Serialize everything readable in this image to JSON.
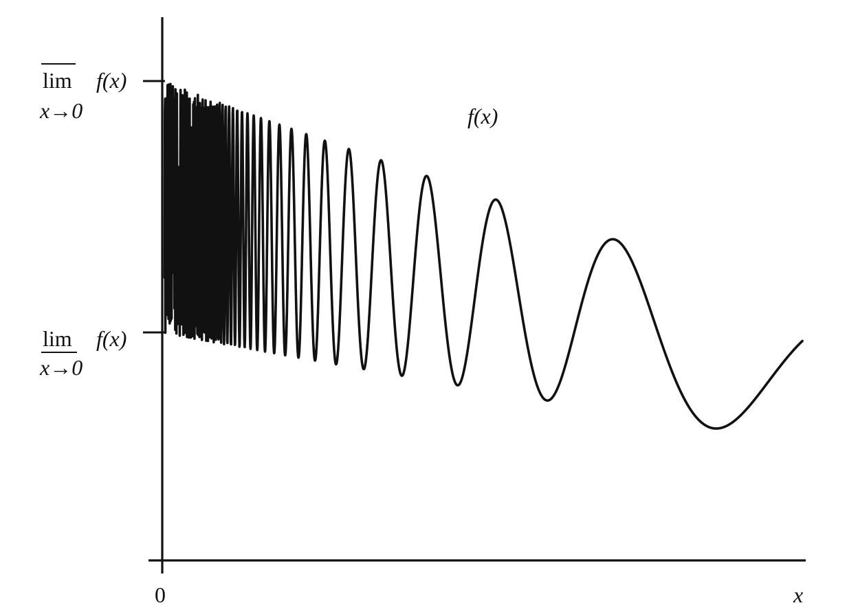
{
  "diagram": {
    "curve_label": "f(x)",
    "axes": {
      "origin_label": "0",
      "x_label": "x"
    },
    "upper_limit": {
      "operator": "lim",
      "subscript": "x→0",
      "function": "f(x)"
    },
    "lower_limit": {
      "operator": "lim",
      "subscript": "x→0",
      "function": "f(x)"
    },
    "colors": {
      "ink": "#111111",
      "background": "#ffffff"
    }
  }
}
